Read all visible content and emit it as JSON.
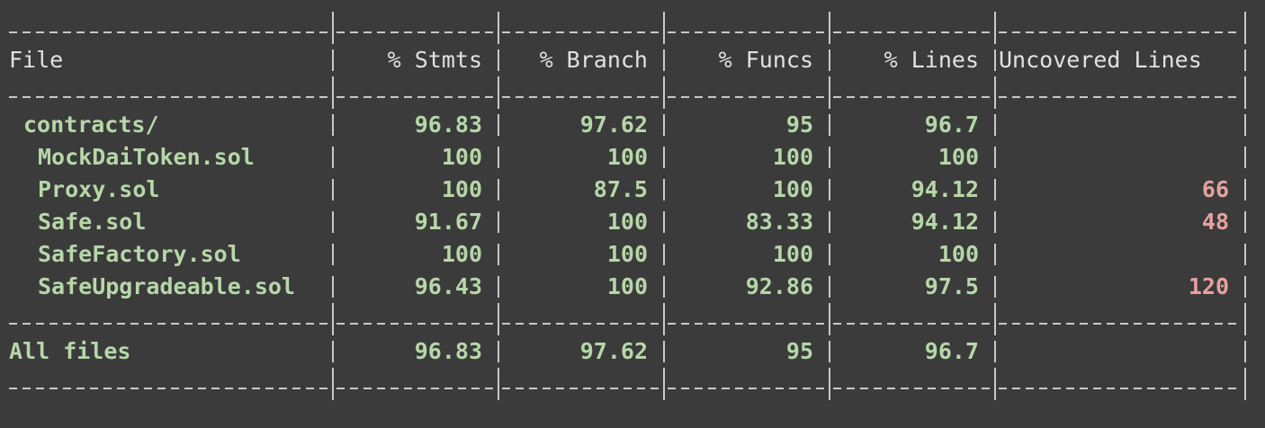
{
  "columns": {
    "file": "File",
    "stmts": "% Stmts",
    "branch": "% Branch",
    "funcs": "% Funcs",
    "lines": "% Lines",
    "uncovered": "Uncovered Lines"
  },
  "rows": [
    {
      "file": "contracts/",
      "stmts": "96.83",
      "branch": "97.62",
      "funcs": "95",
      "lines": "96.7",
      "uncovered": ""
    },
    {
      "file": "MockDaiToken.sol",
      "stmts": "100",
      "branch": "100",
      "funcs": "100",
      "lines": "100",
      "uncovered": ""
    },
    {
      "file": "Proxy.sol",
      "stmts": "100",
      "branch": "87.5",
      "funcs": "100",
      "lines": "94.12",
      "uncovered": "66"
    },
    {
      "file": "Safe.sol",
      "stmts": "91.67",
      "branch": "100",
      "funcs": "83.33",
      "lines": "94.12",
      "uncovered": "48"
    },
    {
      "file": "SafeFactory.sol",
      "stmts": "100",
      "branch": "100",
      "funcs": "100",
      "lines": "100",
      "uncovered": ""
    },
    {
      "file": "SafeUpgradeable.sol",
      "stmts": "96.43",
      "branch": "100",
      "funcs": "92.86",
      "lines": "97.5",
      "uncovered": "120"
    }
  ],
  "total": {
    "file": "All files",
    "stmts": "96.83",
    "branch": "97.62",
    "funcs": "95",
    "lines": "96.7",
    "uncovered": ""
  },
  "colors": {
    "background": "#3b3b3b",
    "covered": "#b6d7a8",
    "uncovered": "#e8a0a0",
    "rule": "#c8c8c8"
  }
}
